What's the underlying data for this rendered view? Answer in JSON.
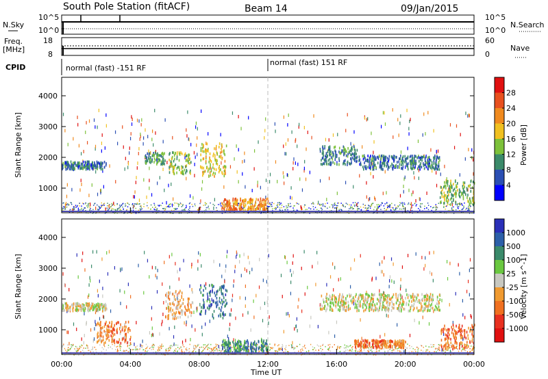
{
  "header": {
    "station": "South Pole Station (fitACF)",
    "beam": "Beam 14",
    "date": "09/Jan/2015"
  },
  "top_panels": {
    "nsky_label": "N.Sky",
    "nsky_ticks": [
      "10^5",
      "10^0"
    ],
    "nsearch_label": "N.Search",
    "nsearch_ticks": [
      "10^5",
      "10^0"
    ],
    "freq_label_1": "Freq.",
    "freq_label_2": "[MHz]",
    "freq_ticks": [
      "18",
      "8"
    ],
    "nave_label": "Nave",
    "nave_ticks": [
      "60",
      "0"
    ],
    "cpid_label": "CPID",
    "cpid_segments": [
      "normal (fast) -151 RF",
      "normal (fast) 151 RF"
    ]
  },
  "colors": {
    "power_scale": [
      "#0000ff",
      "#2b4fb3",
      "#3b8a6a",
      "#7dc13a",
      "#f0c020",
      "#f08a1e",
      "#e8501e",
      "#e01010"
    ],
    "velocity_scale": [
      "#2a2fb8",
      "#2c5fa8",
      "#3a8a6a",
      "#6ac840",
      "#c8c8c0",
      "#f09a30",
      "#f07020",
      "#e83020",
      "#e01010"
    ]
  },
  "chart_data": [
    {
      "type": "heatmap",
      "title": "",
      "xlabel": "Time UT",
      "ylabel": "Slant Range [km]",
      "x_ticks": [
        "00:00",
        "04:00",
        "08:00",
        "12:00",
        "16:00",
        "20:00",
        "00:00"
      ],
      "y_ticks": [
        1000,
        2000,
        3000,
        4000
      ],
      "ylim": [
        200,
        4600
      ],
      "colorbar_label": "Power [dB]",
      "colorbar_ticks": [
        "4",
        "8",
        "12",
        "16",
        "20",
        "24",
        "28"
      ],
      "regions": [
        {
          "t0": 0.0,
          "t1": 2.6,
          "r0": 1650,
          "r1": 1900,
          "level": 0.25
        },
        {
          "t0": 4.8,
          "t1": 6.0,
          "r0": 1800,
          "r1": 2200,
          "level": 0.35
        },
        {
          "t0": 6.2,
          "t1": 7.5,
          "r0": 1500,
          "r1": 2200,
          "level": 0.45
        },
        {
          "t0": 8.0,
          "t1": 9.6,
          "r0": 1400,
          "r1": 2500,
          "level": 0.55
        },
        {
          "t0": 9.3,
          "t1": 12.0,
          "r0": 300,
          "r1": 700,
          "level": 0.7
        },
        {
          "t0": 15.0,
          "t1": 17.2,
          "r0": 1800,
          "r1": 2400,
          "level": 0.3
        },
        {
          "t0": 17.2,
          "t1": 22.0,
          "r0": 1650,
          "r1": 2100,
          "level": 0.25
        },
        {
          "t0": 22.0,
          "t1": 24.0,
          "r0": 500,
          "r1": 1300,
          "level": 0.4
        }
      ]
    },
    {
      "type": "heatmap",
      "title": "",
      "xlabel": "Time UT",
      "ylabel": "Slant Range [km]",
      "x_ticks": [
        "00:00",
        "04:00",
        "08:00",
        "12:00",
        "16:00",
        "20:00",
        "00:00"
      ],
      "y_ticks": [
        1000,
        2000,
        3000,
        4000
      ],
      "ylim": [
        200,
        4600
      ],
      "colorbar_label": "Velocity [m s^-1]",
      "colorbar_ticks": [
        "1000",
        "500",
        "100",
        "25",
        "-25",
        "-100",
        "-500",
        "-1000"
      ],
      "regions": [
        {
          "t0": 0.0,
          "t1": 2.6,
          "r0": 1650,
          "r1": 1900,
          "level": 0.5
        },
        {
          "t0": 2.0,
          "t1": 4.0,
          "r0": 600,
          "r1": 1300,
          "level": 0.68
        },
        {
          "t0": 6.0,
          "t1": 7.6,
          "r0": 1400,
          "r1": 2300,
          "level": 0.6
        },
        {
          "t0": 8.0,
          "t1": 9.6,
          "r0": 1400,
          "r1": 2500,
          "level": 0.2
        },
        {
          "t0": 9.3,
          "t1": 12.0,
          "r0": 300,
          "r1": 700,
          "level": 0.25
        },
        {
          "t0": 15.0,
          "t1": 22.0,
          "r0": 1650,
          "r1": 2200,
          "level": 0.5
        },
        {
          "t0": 17.0,
          "t1": 20.0,
          "r0": 450,
          "r1": 700,
          "level": 0.7
        },
        {
          "t0": 22.0,
          "t1": 24.0,
          "r0": 400,
          "r1": 1200,
          "level": 0.72
        }
      ]
    }
  ]
}
